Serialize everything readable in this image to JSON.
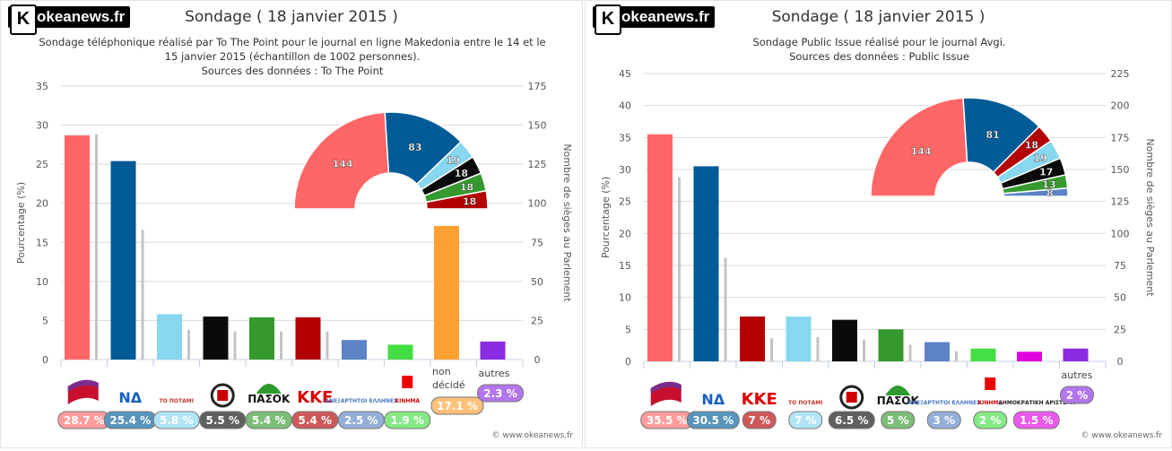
{
  "panels": [
    {
      "logo": "okeanews.fr",
      "title": "Sondage ( 18 janvier 2015 )",
      "subtitle": [
        "Sondage téléphonique réalisé par To The Point pour le journal en ligne Makedonia entre le 14 et le",
        "15 janvier 2015 (échantillon de 1002 personnes).",
        "Sources des données : To The Point"
      ],
      "copyright": "© www.okeanews.fr"
    },
    {
      "logo": "okeanews.fr",
      "title": "Sondage ( 18 janvier 2015 )",
      "subtitle": [
        "Sondage Public Issue réalisé pour le journal Avgi.",
        "Sources des données : Public Issue"
      ],
      "copyright": "© www.okeanews.fr"
    }
  ],
  "chart_data": [
    {
      "type": "bar",
      "ylabel": "Pourcentage (%)",
      "y2label": "Nombre de sièges au Parlement",
      "ylim": [
        0,
        35
      ],
      "yticks": [
        0,
        5,
        10,
        15,
        20,
        25,
        30,
        35
      ],
      "y2lim": [
        0,
        175
      ],
      "y2ticks": [
        0,
        25,
        50,
        75,
        100,
        125,
        150,
        175
      ],
      "grid": true,
      "categories": [
        {
          "logo": "SYRIZA flag",
          "value": 28.7,
          "label": "28.7 %",
          "seats": 144,
          "color": "#ff6666"
        },
        {
          "logo": "ΝΔ",
          "value": 25.4,
          "label": "25.4 %",
          "seats": 83,
          "color": "#005b96"
        },
        {
          "logo": "ΤΟ ΠΟΤΑΜΙ",
          "value": 5.8,
          "label": "5.8 %",
          "seats": 19,
          "color": "#87d7f0"
        },
        {
          "logo": "Golden Dawn emblem",
          "value": 5.5,
          "label": "5.5 %",
          "seats": 18,
          "color": "#0a0a0a"
        },
        {
          "logo": "ΠΑΣΟΚ",
          "value": 5.4,
          "label": "5.4 %",
          "seats": 18,
          "color": "#36992e"
        },
        {
          "logo": "ΚΚΕ",
          "value": 5.4,
          "label": "5.4 %",
          "seats": 18,
          "color": "#b30000"
        },
        {
          "logo": "ΑΝΕΞΑΡΤΗΤΟΙ ΕΛΛΗΝΕΣ",
          "value": 2.5,
          "label": "2.5 %",
          "seats": null,
          "color": "#5b83c6"
        },
        {
          "logo": "ΚΙΝΗΜΑ",
          "value": 1.9,
          "label": "1.9 %",
          "seats": null,
          "color": "#44dd44"
        },
        {
          "name": "non décidé",
          "value": 17.1,
          "label": "17.1 %",
          "seats": null,
          "color": "#ffa033"
        },
        {
          "name": "autres",
          "value": 2.3,
          "label": "2.3 %",
          "seats": null,
          "color": "#8a2be2"
        }
      ]
    },
    {
      "type": "bar",
      "ylabel": "Pourcentage (%)",
      "y2label": "Nombre de sièges au Parlement",
      "ylim": [
        0,
        45
      ],
      "yticks": [
        0,
        5,
        10,
        15,
        20,
        25,
        30,
        35,
        40,
        45
      ],
      "y2lim": [
        0,
        225
      ],
      "y2ticks": [
        0,
        25,
        50,
        75,
        100,
        125,
        150,
        175,
        200,
        225
      ],
      "grid": true,
      "categories": [
        {
          "logo": "SYRIZA flag",
          "value": 35.5,
          "label": "35.5 %",
          "seats": 144,
          "color": "#ff6666"
        },
        {
          "logo": "ΝΔ",
          "value": 30.5,
          "label": "30.5 %",
          "seats": 81,
          "color": "#005b96"
        },
        {
          "logo": "ΚΚΕ",
          "value": 7,
          "label": "7 %",
          "seats": 18,
          "color": "#b30000"
        },
        {
          "logo": "ΤΟ ΠΟΤΑΜΙ",
          "value": 7,
          "label": "7 %",
          "seats": 19,
          "color": "#87d7f0"
        },
        {
          "logo": "Golden Dawn emblem",
          "value": 6.5,
          "label": "6.5 %",
          "seats": 17,
          "color": "#0a0a0a"
        },
        {
          "logo": "ΠΑΣΟΚ",
          "value": 5,
          "label": "5 %",
          "seats": 13,
          "color": "#36992e"
        },
        {
          "logo": "ΑΝΕΞΑΡΤΗΤΟΙ ΕΛΛΗΝΕΣ",
          "value": 3,
          "label": "3 %",
          "seats": 8,
          "color": "#5b83c6"
        },
        {
          "logo": "ΚΙΝΗΜΑ",
          "value": 2,
          "label": "2 %",
          "seats": null,
          "color": "#44dd44"
        },
        {
          "logo": "ΔΗΜΟΚΡΑΤΙΚΗ ΑΡΙΣΤΕΡΑ",
          "value": 1.5,
          "label": "1.5 %",
          "seats": null,
          "color": "#e000e0"
        },
        {
          "name": "autres",
          "value": 2,
          "label": "2 %",
          "seats": null,
          "color": "#8a2be2"
        }
      ]
    }
  ]
}
